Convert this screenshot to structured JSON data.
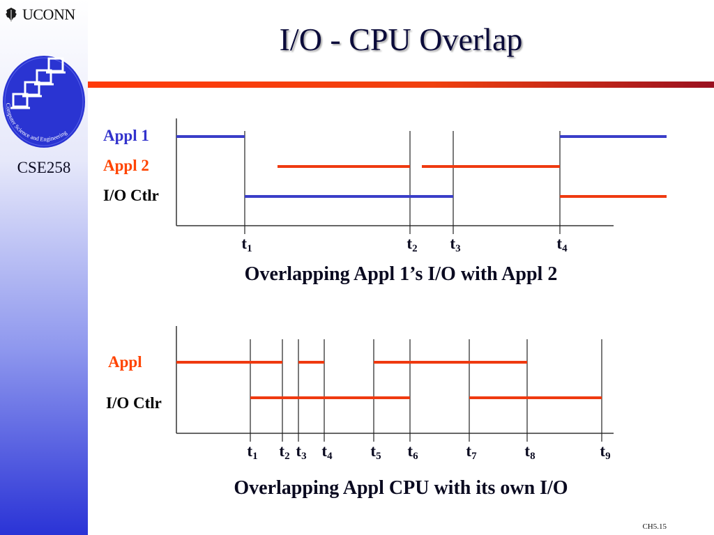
{
  "header": {
    "institution": "UCONN",
    "seal_text": "Computer Science and Engineering",
    "course": "CSE258",
    "title": "I/O - CPU Overlap"
  },
  "diagram1": {
    "caption": "Overlapping Appl 1’s I/O with Appl 2",
    "lanes": [
      {
        "label": "Appl 1",
        "color": "#3333cc"
      },
      {
        "label": "Appl 2",
        "color": "#ff4400"
      },
      {
        "label": "I/O Ctlr",
        "color": "#000000"
      }
    ],
    "ticks": [
      {
        "base": "t",
        "sub": "1"
      },
      {
        "base": "t",
        "sub": "2"
      },
      {
        "base": "t",
        "sub": "3"
      },
      {
        "base": "t",
        "sub": "4"
      }
    ]
  },
  "diagram2": {
    "caption": "Overlapping Appl CPU with its own I/O",
    "lanes": [
      {
        "label": "Appl",
        "color": "#ff4400"
      },
      {
        "label": "I/O Ctlr",
        "color": "#000000"
      }
    ],
    "ticks": [
      {
        "base": "t",
        "sub": "1"
      },
      {
        "base": "t",
        "sub": "2"
      },
      {
        "base": "t",
        "sub": "3"
      },
      {
        "base": "t",
        "sub": "4"
      },
      {
        "base": "t",
        "sub": "5"
      },
      {
        "base": "t",
        "sub": "6"
      },
      {
        "base": "t",
        "sub": "7"
      },
      {
        "base": "t",
        "sub": "8"
      },
      {
        "base": "t",
        "sub": "9"
      }
    ]
  },
  "footer": {
    "slide_number": "CH5.15"
  },
  "colors": {
    "blue_bar": "#3a3ec8",
    "red_bar": "#ef3a10",
    "axis": "#333333"
  }
}
